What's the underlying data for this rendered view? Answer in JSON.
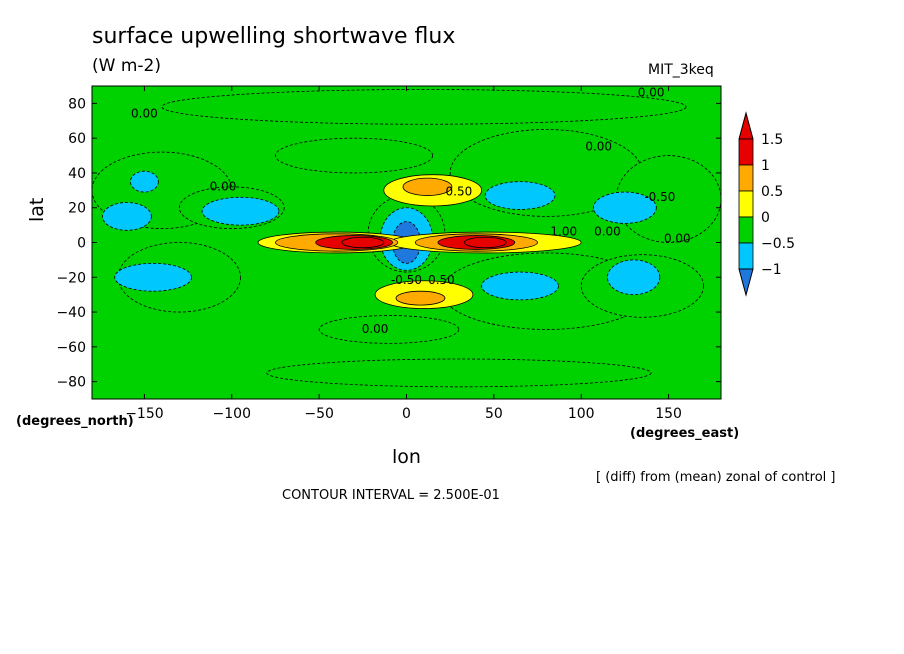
{
  "title": "surface upwelling shortwave flux",
  "units": "(W m-2)",
  "dataset": "MIT_3keq",
  "note": "[ (diff) from (mean) zonal of control ]",
  "contour_interval": "CONTOUR INTERVAL = 2.500E-01",
  "chart_data": {
    "type": "heatmap",
    "title": "surface upwelling shortwave flux",
    "subtitle": "(W m-2)",
    "xlabel": "lon",
    "ylabel": "lat",
    "x_units": "(degrees_east)",
    "y_units": "(degrees_north)",
    "xlim": [
      -180,
      180
    ],
    "ylim": [
      -90,
      90
    ],
    "x_ticks": [
      {
        "value": -150,
        "label": "−150"
      },
      {
        "value": -100,
        "label": "−100"
      },
      {
        "value": -50,
        "label": "−50"
      },
      {
        "value": 0,
        "label": "0"
      },
      {
        "value": 50,
        "label": "50"
      },
      {
        "value": 100,
        "label": "100"
      },
      {
        "value": 150,
        "label": "150"
      }
    ],
    "y_ticks": [
      {
        "value": 80,
        "label": "80"
      },
      {
        "value": 60,
        "label": "60"
      },
      {
        "value": 40,
        "label": "40"
      },
      {
        "value": 20,
        "label": "20"
      },
      {
        "value": 0,
        "label": "0"
      },
      {
        "value": -20,
        "label": "−20"
      },
      {
        "value": -40,
        "label": "−40"
      },
      {
        "value": -60,
        "label": "−60"
      },
      {
        "value": -80,
        "label": "−80"
      }
    ],
    "colorbar": {
      "levels": [
        -1,
        -0.5,
        0,
        0.5,
        1,
        1.5
      ],
      "labels": [
        "−1",
        "−0.5",
        "0",
        "0.5",
        "1",
        "1.5"
      ],
      "colors": [
        "#1f78dc",
        "#00c8ff",
        "#00d200",
        "#ffff00",
        "#ffaa00",
        "#e60000",
        "#ff0000"
      ],
      "below_color": "#1f78dc",
      "above_color": "#e60000"
    },
    "background_color": "#00d200",
    "regions": [
      {
        "shape": "ellipse",
        "lon": -140,
        "lat": 30,
        "rlon": 40,
        "rlat": 22,
        "value": -0.25
      },
      {
        "shape": "ellipse",
        "lon": -130,
        "lat": -20,
        "rlon": 35,
        "rlat": 20,
        "value": -0.25
      },
      {
        "shape": "ellipse",
        "lon": 80,
        "lat": 40,
        "rlon": 55,
        "rlat": 25,
        "value": -0.25
      },
      {
        "shape": "ellipse",
        "lon": 80,
        "lat": -28,
        "rlon": 60,
        "rlat": 22,
        "value": -0.25
      },
      {
        "shape": "ellipse",
        "lon": 150,
        "lat": 25,
        "rlon": 30,
        "rlat": 25,
        "value": -0.25
      },
      {
        "shape": "ellipse",
        "lon": 135,
        "lat": -25,
        "rlon": 35,
        "rlat": 18,
        "value": -0.25
      },
      {
        "shape": "ellipse",
        "lon": -30,
        "lat": 50,
        "rlon": 45,
        "rlat": 10,
        "value": -0.25
      },
      {
        "shape": "ellipse",
        "lon": -10,
        "lat": -50,
        "rlon": 40,
        "rlat": 8,
        "value": -0.25
      },
      {
        "shape": "ellipse",
        "lon": 10,
        "lat": 78,
        "rlon": 150,
        "rlat": 10,
        "value": -0.25
      },
      {
        "shape": "ellipse",
        "lon": 30,
        "lat": -75,
        "rlon": 110,
        "rlat": 8,
        "value": -0.25
      },
      {
        "shape": "ellipse",
        "lon": -100,
        "lat": 20,
        "rlon": 30,
        "rlat": 12,
        "value": -0.25
      },
      {
        "shape": "ellipse",
        "lon": -150,
        "lat": 35,
        "rlon": 8,
        "rlat": 6,
        "value": -0.75
      },
      {
        "shape": "ellipse",
        "lon": -160,
        "lat": 15,
        "rlon": 14,
        "rlat": 8,
        "value": -0.75
      },
      {
        "shape": "ellipse",
        "lon": -95,
        "lat": 18,
        "rlon": 22,
        "rlat": 8,
        "value": -0.75
      },
      {
        "shape": "ellipse",
        "lon": -145,
        "lat": -20,
        "rlon": 22,
        "rlat": 8,
        "value": -0.75
      },
      {
        "shape": "ellipse",
        "lon": 65,
        "lat": 27,
        "rlon": 20,
        "rlat": 8,
        "value": -0.75
      },
      {
        "shape": "ellipse",
        "lon": 65,
        "lat": -25,
        "rlon": 22,
        "rlat": 8,
        "value": -0.75
      },
      {
        "shape": "ellipse",
        "lon": 125,
        "lat": 20,
        "rlon": 18,
        "rlat": 9,
        "value": -0.75
      },
      {
        "shape": "ellipse",
        "lon": 130,
        "lat": -20,
        "rlon": 15,
        "rlat": 10,
        "value": -0.75
      },
      {
        "shape": "ellipse",
        "lon": 0,
        "lat": 5,
        "rlon": 22,
        "rlat": 22,
        "value": -0.25
      },
      {
        "shape": "ellipse",
        "lon": 0,
        "lat": 2,
        "rlon": 15,
        "rlat": 18,
        "value": -0.75
      },
      {
        "shape": "ellipse",
        "lon": 0,
        "lat": 0,
        "rlon": 8,
        "rlat": 12,
        "value": -1.25
      },
      {
        "shape": "ellipse",
        "lon": 15,
        "lat": 30,
        "rlon": 28,
        "rlat": 9,
        "value": 0.25
      },
      {
        "shape": "ellipse",
        "lon": 12,
        "lat": 32,
        "rlon": 14,
        "rlat": 5,
        "value": 0.75
      },
      {
        "shape": "ellipse",
        "lon": 10,
        "lat": -30,
        "rlon": 28,
        "rlat": 8,
        "value": 0.25
      },
      {
        "shape": "ellipse",
        "lon": 8,
        "lat": -32,
        "rlon": 14,
        "rlat": 4,
        "value": 0.75
      },
      {
        "shape": "ellipse",
        "lon": -40,
        "lat": 0,
        "rlon": 45,
        "rlat": 6,
        "value": 0.25
      },
      {
        "shape": "ellipse",
        "lon": 45,
        "lat": 0,
        "rlon": 55,
        "rlat": 6,
        "value": 0.25
      },
      {
        "shape": "ellipse",
        "lon": -40,
        "lat": 0,
        "rlon": 35,
        "rlat": 5,
        "value": 0.75
      },
      {
        "shape": "ellipse",
        "lon": 40,
        "lat": 0,
        "rlon": 35,
        "rlat": 5,
        "value": 0.75
      },
      {
        "shape": "ellipse",
        "lon": -30,
        "lat": 0,
        "rlon": 22,
        "rlat": 4,
        "value": 1.25
      },
      {
        "shape": "ellipse",
        "lon": 40,
        "lat": 0,
        "rlon": 22,
        "rlat": 4,
        "value": 1.25
      },
      {
        "shape": "ellipse",
        "lon": -25,
        "lat": 0,
        "rlon": 12,
        "rlat": 3,
        "value": 1.75
      },
      {
        "shape": "ellipse",
        "lon": 45,
        "lat": 0,
        "rlon": 12,
        "rlat": 3,
        "value": 1.75
      }
    ],
    "contour_labels": [
      {
        "lon": -150,
        "lat": 72,
        "text": "0.00"
      },
      {
        "lon": -105,
        "lat": 30,
        "text": "0.00"
      },
      {
        "lon": 110,
        "lat": 53,
        "text": "0.00"
      },
      {
        "lon": 145,
        "lat": 24,
        "text": "-0.50"
      },
      {
        "lon": 30,
        "lat": 27,
        "text": "0.50"
      },
      {
        "lon": 0,
        "lat": -24,
        "text": "-0.50"
      },
      {
        "lon": 20,
        "lat": -24,
        "text": "0.50"
      },
      {
        "lon": -18,
        "lat": -52,
        "text": "0.00"
      },
      {
        "lon": 155,
        "lat": 0,
        "text": "0.00"
      },
      {
        "lon": 90,
        "lat": 4,
        "text": "1.00"
      },
      {
        "lon": 115,
        "lat": 4,
        "text": "0.00"
      },
      {
        "lon": 140,
        "lat": 84,
        "text": "0.00"
      }
    ]
  }
}
